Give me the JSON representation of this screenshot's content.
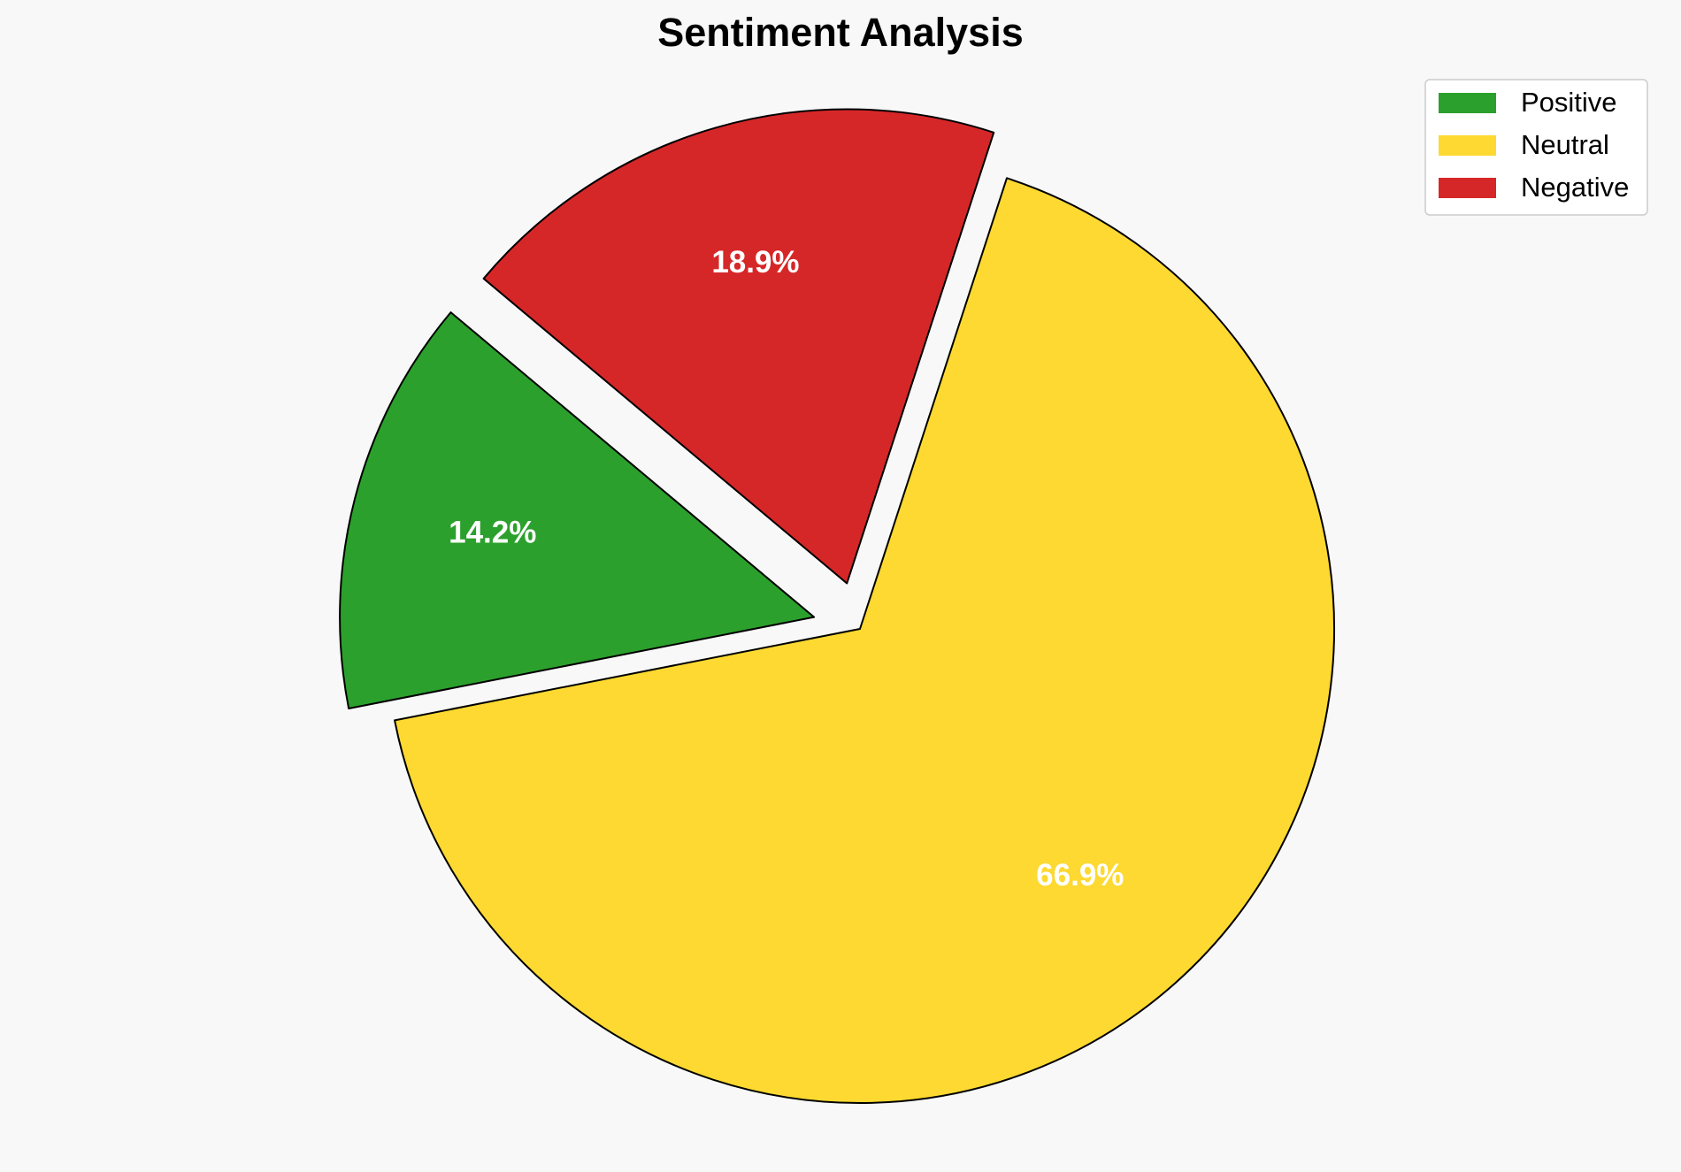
{
  "chart_data": {
    "type": "pie",
    "title": "Sentiment Analysis",
    "categories": [
      "Positive",
      "Neutral",
      "Negative"
    ],
    "values": [
      14.2,
      66.9,
      18.9
    ],
    "value_labels": [
      "14.2%",
      "66.9%",
      "18.9%"
    ],
    "colors": [
      "#2ca02c",
      "#fdd931",
      "#d62728"
    ],
    "explode": [
      0.1,
      0,
      0.1
    ],
    "start_angle": 140,
    "legend": "upper right"
  }
}
